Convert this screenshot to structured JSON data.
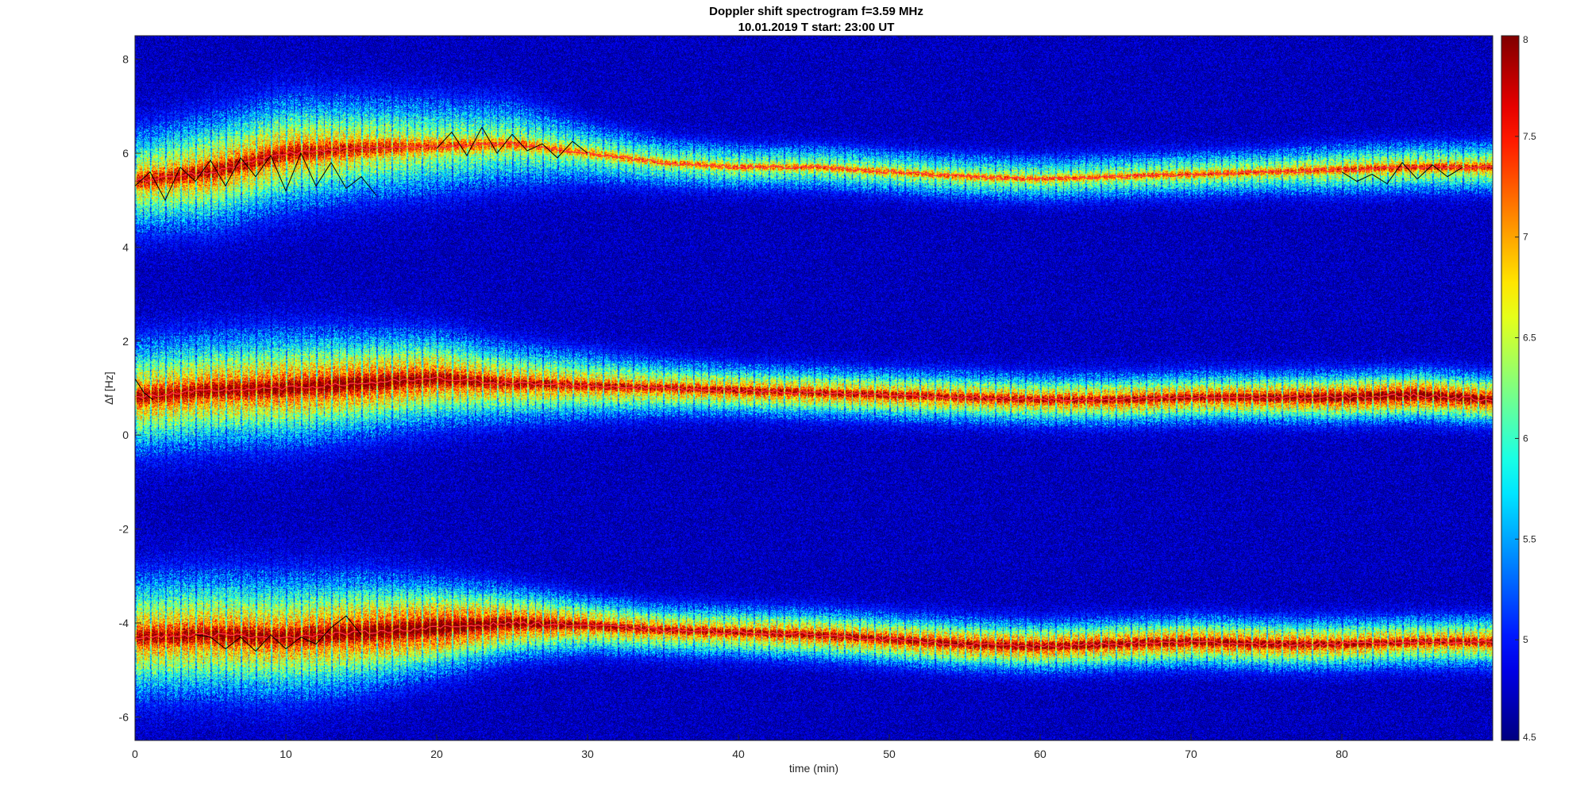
{
  "chart_data": {
    "type": "heatmap",
    "title": "Doppler shift spectrogram f=3.59 MHz",
    "subtitle": "10.01.2019   T start: 23:00 UT",
    "xlabel": "time (min)",
    "ylabel": "∆f [Hz]",
    "xlim": [
      0,
      90
    ],
    "ylim": [
      -6.5,
      8.5
    ],
    "x_ticks": [
      0,
      10,
      20,
      30,
      40,
      50,
      60,
      70,
      80
    ],
    "y_ticks": [
      -6,
      -4,
      -2,
      0,
      2,
      4,
      6,
      8
    ],
    "colorbar": {
      "range": [
        4.5,
        8
      ],
      "ticks": [
        4.5,
        5,
        5.5,
        6,
        6.5,
        7,
        7.5,
        8
      ],
      "colormap": "jet"
    },
    "background_level": 4.7,
    "bands": [
      {
        "center_time": [
          0,
          5,
          10,
          15,
          20,
          25,
          30,
          35,
          40,
          45,
          50,
          55,
          60,
          65,
          70,
          75,
          80,
          85,
          90
        ],
        "center_hz": [
          5.4,
          5.6,
          6.0,
          6.1,
          6.15,
          6.2,
          6.0,
          5.8,
          5.7,
          5.7,
          5.6,
          5.5,
          5.45,
          5.5,
          5.55,
          5.6,
          5.65,
          5.7,
          5.7
        ],
        "halfwidth_hz": [
          1.0,
          1.1,
          1.1,
          1.0,
          0.95,
          0.85,
          0.6,
          0.5,
          0.45,
          0.45,
          0.45,
          0.45,
          0.45,
          0.45,
          0.45,
          0.45,
          0.5,
          0.5,
          0.5
        ],
        "peak_level": [
          6.8,
          7.0,
          7.0,
          6.8,
          6.5,
          6.4,
          6.3,
          6.3,
          6.4,
          6.4,
          6.4,
          6.4,
          6.4,
          6.4,
          6.5,
          6.5,
          6.6,
          6.7,
          6.7
        ]
      },
      {
        "center_time": [
          0,
          5,
          10,
          15,
          20,
          25,
          30,
          35,
          40,
          45,
          50,
          55,
          60,
          65,
          70,
          75,
          80,
          85,
          90
        ],
        "center_hz": [
          0.8,
          0.95,
          1.0,
          1.1,
          1.2,
          1.1,
          1.05,
          1.0,
          0.95,
          0.9,
          0.85,
          0.8,
          0.75,
          0.75,
          0.8,
          0.8,
          0.8,
          0.85,
          0.75
        ],
        "halfwidth_hz": [
          1.1,
          1.1,
          1.1,
          1.0,
          0.9,
          0.75,
          0.65,
          0.55,
          0.5,
          0.5,
          0.5,
          0.5,
          0.5,
          0.5,
          0.5,
          0.5,
          0.5,
          0.5,
          0.5
        ],
        "peak_level": [
          7.0,
          7.1,
          7.2,
          7.3,
          7.2,
          7.0,
          6.9,
          6.9,
          7.0,
          7.0,
          7.0,
          7.0,
          7.0,
          7.1,
          7.1,
          7.2,
          7.4,
          7.5,
          7.3
        ]
      },
      {
        "center_time": [
          0,
          5,
          10,
          15,
          20,
          25,
          30,
          35,
          40,
          45,
          50,
          55,
          60,
          65,
          70,
          75,
          80,
          85,
          90
        ],
        "center_hz": [
          -4.3,
          -4.25,
          -4.3,
          -4.2,
          -4.1,
          -4.0,
          -4.05,
          -4.15,
          -4.2,
          -4.25,
          -4.35,
          -4.45,
          -4.5,
          -4.45,
          -4.4,
          -4.45,
          -4.45,
          -4.4,
          -4.4
        ],
        "halfwidth_hz": [
          1.2,
          1.2,
          1.2,
          1.1,
          0.9,
          0.7,
          0.55,
          0.5,
          0.5,
          0.5,
          0.5,
          0.5,
          0.5,
          0.5,
          0.5,
          0.5,
          0.5,
          0.5,
          0.5
        ],
        "peak_level": [
          7.0,
          7.1,
          7.1,
          7.3,
          7.5,
          7.3,
          7.1,
          7.0,
          7.0,
          7.1,
          7.1,
          7.2,
          7.2,
          7.2,
          7.2,
          7.2,
          7.1,
          7.0,
          7.0
        ]
      }
    ],
    "trace_color": "#ff3344",
    "detection_color": "#000000",
    "detections": [
      {
        "t": [
          0,
          1,
          2,
          3,
          4,
          5,
          6,
          7,
          8,
          9,
          10,
          11,
          12,
          13,
          14,
          15,
          16
        ],
        "hz": [
          5.3,
          5.6,
          5.0,
          5.7,
          5.4,
          5.85,
          5.3,
          5.9,
          5.5,
          5.95,
          5.2,
          6.0,
          5.3,
          5.8,
          5.25,
          5.5,
          5.1
        ]
      },
      {
        "t": [
          20,
          21,
          22,
          23,
          24,
          25,
          26,
          27,
          28,
          29,
          30
        ],
        "hz": [
          6.1,
          6.45,
          5.95,
          6.55,
          6.0,
          6.4,
          6.05,
          6.2,
          5.9,
          6.25,
          6.0
        ]
      },
      {
        "t": [
          80,
          81,
          82,
          83,
          84,
          85,
          86,
          87,
          88
        ],
        "hz": [
          5.6,
          5.4,
          5.55,
          5.35,
          5.8,
          5.45,
          5.75,
          5.5,
          5.7
        ]
      },
      {
        "t": [
          0,
          0.6,
          1.2
        ],
        "hz": [
          1.2,
          0.9,
          0.75
        ]
      },
      {
        "t": [
          4,
          5,
          6,
          7,
          8,
          9,
          10,
          11,
          12,
          13,
          14,
          15
        ],
        "hz": [
          -4.25,
          -4.3,
          -4.55,
          -4.3,
          -4.6,
          -4.25,
          -4.55,
          -4.3,
          -4.45,
          -4.1,
          -3.85,
          -4.25
        ]
      }
    ]
  }
}
